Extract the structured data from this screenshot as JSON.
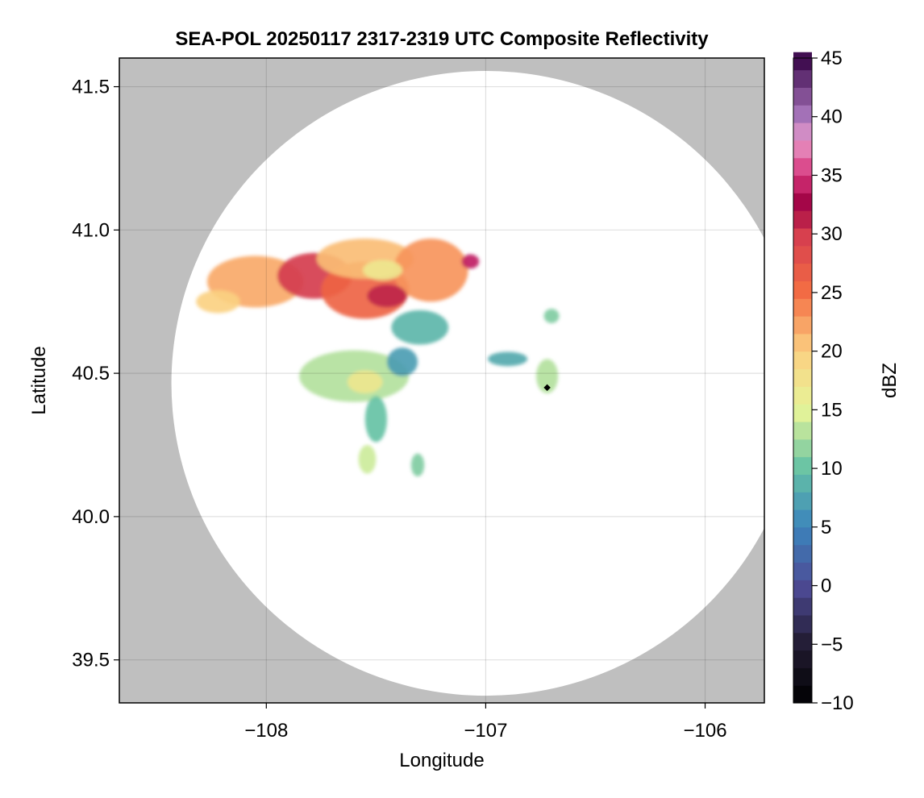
{
  "chart_data": {
    "type": "heatmap",
    "title": "SEA-POL 20250117 2317-2319 UTC Composite Reflectivity",
    "xlabel": "Longitude",
    "ylabel": "Latitude",
    "xlim": [
      -108.67,
      -105.73
    ],
    "ylim": [
      39.35,
      41.6
    ],
    "xticks": [
      -108,
      -107,
      -106
    ],
    "xtick_labels": [
      "−108",
      "−107",
      "−106"
    ],
    "yticks": [
      39.5,
      40.0,
      40.5,
      41.0,
      41.5
    ],
    "ytick_labels": [
      "39.5",
      "40.0",
      "40.5",
      "41.0",
      "41.5"
    ],
    "grid": true,
    "outside_range_color": "#bfbfbf",
    "no_echo_color": "#ffffff",
    "radar_site": {
      "lon": -107.0,
      "lat": 40.465
    },
    "radar_range_lat_deg": 1.09,
    "marker": {
      "lon": -106.72,
      "lat": 40.45,
      "color": "#000000"
    },
    "colorbar": {
      "label": "dBZ",
      "min": -10,
      "max": 45,
      "step": 1.5,
      "ticks": [
        -10,
        -5,
        0,
        5,
        10,
        15,
        20,
        25,
        30,
        35,
        40,
        45
      ],
      "tick_labels": [
        "−10",
        "−5",
        "0",
        "5",
        "10",
        "15",
        "20",
        "25",
        "30",
        "35",
        "40",
        "45"
      ],
      "stops": [
        {
          "v": -10,
          "c": "#000000"
        },
        {
          "v": -5,
          "c": "#221c32"
        },
        {
          "v": 0,
          "c": "#4d4a95"
        },
        {
          "v": 5,
          "c": "#3b84bc"
        },
        {
          "v": 10,
          "c": "#66c2a5"
        },
        {
          "v": 15,
          "c": "#e6f598"
        },
        {
          "v": 20,
          "c": "#fbd182"
        },
        {
          "v": 25,
          "c": "#f46d43"
        },
        {
          "v": 30,
          "c": "#d53e4f"
        },
        {
          "v": 32.5,
          "c": "#9e0142"
        },
        {
          "v": 35,
          "c": "#d6337a"
        },
        {
          "v": 38,
          "c": "#e899c9"
        },
        {
          "v": 40,
          "c": "#a876bd"
        },
        {
          "v": 45,
          "c": "#3d0a4c"
        }
      ]
    },
    "echo_regions": [
      {
        "name": "northern band west",
        "lon": -108.05,
        "lat": 40.82,
        "rlon": 0.22,
        "rlat": 0.09,
        "dbz": 22
      },
      {
        "name": "northern band west tail",
        "lon": -108.22,
        "lat": 40.75,
        "rlon": 0.1,
        "rlat": 0.04,
        "dbz": 20
      },
      {
        "name": "northern band center core",
        "lon": -107.78,
        "lat": 40.84,
        "rlon": 0.17,
        "rlat": 0.08,
        "dbz": 30
      },
      {
        "name": "northern band center south",
        "lon": -107.55,
        "lat": 40.79,
        "rlon": 0.2,
        "rlat": 0.1,
        "dbz": 26
      },
      {
        "name": "northern band center north",
        "lon": -107.55,
        "lat": 40.9,
        "rlon": 0.22,
        "rlat": 0.07,
        "dbz": 21
      },
      {
        "name": "northern band east",
        "lon": -107.25,
        "lat": 40.86,
        "rlon": 0.17,
        "rlat": 0.11,
        "dbz": 23
      },
      {
        "name": "eastern peak",
        "lon": -107.07,
        "lat": 40.89,
        "rlon": 0.04,
        "rlat": 0.025,
        "dbz": 34
      },
      {
        "name": "southeast core",
        "lon": -107.45,
        "lat": 40.77,
        "rlon": 0.09,
        "rlat": 0.04,
        "dbz": 31
      },
      {
        "name": "light patch",
        "lon": -107.47,
        "lat": 40.86,
        "rlon": 0.09,
        "rlat": 0.035,
        "dbz": 17
      },
      {
        "name": "trailing band",
        "lon": -107.3,
        "lat": 40.66,
        "rlon": 0.13,
        "rlat": 0.06,
        "dbz": 9
      },
      {
        "name": "west-central area",
        "lon": -107.6,
        "lat": 40.49,
        "rlon": 0.25,
        "rlat": 0.09,
        "dbz": 13
      },
      {
        "name": "west-central core",
        "lon": -107.55,
        "lat": 40.47,
        "rlon": 0.08,
        "rlat": 0.04,
        "dbz": 17
      },
      {
        "name": "west-central eastern edge",
        "lon": -107.38,
        "lat": 40.54,
        "rlon": 0.07,
        "rlat": 0.05,
        "dbz": 7
      },
      {
        "name": "southern finger",
        "lon": -107.5,
        "lat": 40.34,
        "rlon": 0.05,
        "rlat": 0.08,
        "dbz": 10
      },
      {
        "name": "southwest cell",
        "lon": -107.54,
        "lat": 40.2,
        "rlon": 0.04,
        "rlat": 0.05,
        "dbz": 14
      },
      {
        "name": "south cell",
        "lon": -107.31,
        "lat": 40.18,
        "rlon": 0.03,
        "rlat": 0.04,
        "dbz": 11
      },
      {
        "name": "eastern streak",
        "lon": -106.9,
        "lat": 40.55,
        "rlon": 0.09,
        "rlat": 0.025,
        "dbz": 8
      },
      {
        "name": "eastern cell",
        "lon": -106.72,
        "lat": 40.49,
        "rlon": 0.05,
        "rlat": 0.06,
        "dbz": 13
      },
      {
        "name": "northeast cell",
        "lon": -106.7,
        "lat": 40.7,
        "rlon": 0.035,
        "rlat": 0.025,
        "dbz": 11
      }
    ]
  }
}
